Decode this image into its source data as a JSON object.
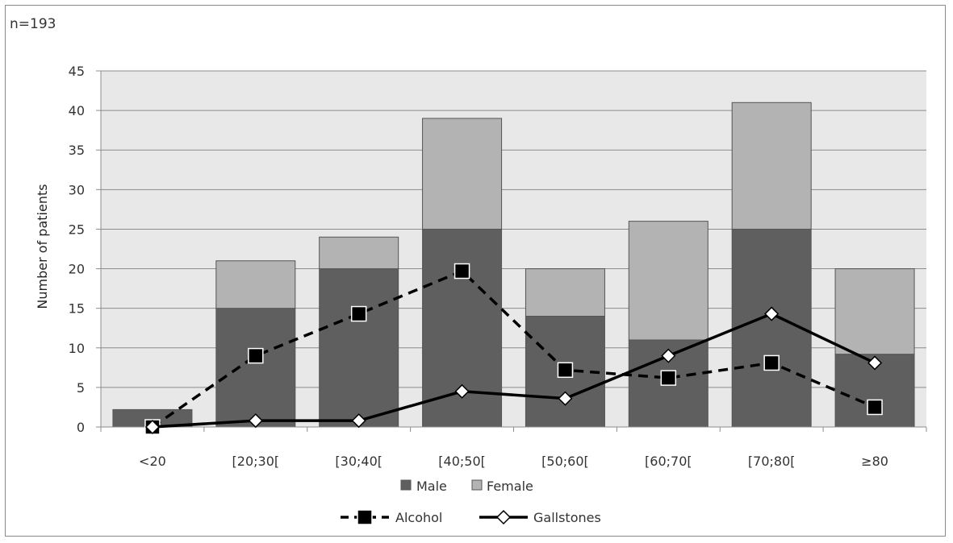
{
  "annotation": "n=193",
  "chart_data": {
    "type": "bar",
    "stacked": true,
    "categories": [
      "<20",
      "[20;30[",
      "[30;40[",
      "[40;50[",
      "[50;60[",
      "[60;70[",
      "[70;80[",
      "≥80"
    ],
    "ylabel": "Number of patients",
    "ylim": [
      0,
      45
    ],
    "yticks": [
      0,
      5,
      10,
      15,
      20,
      25,
      30,
      35,
      40,
      45
    ],
    "grid": true,
    "bar_series": [
      {
        "name": "Male",
        "color": "#5f5f5f",
        "values": [
          2.2,
          15,
          20,
          25,
          14,
          11,
          25,
          9.2
        ]
      },
      {
        "name": "Female",
        "color": "#b3b3b3",
        "values": [
          0,
          6,
          4,
          14,
          6,
          15,
          16,
          10.8
        ]
      }
    ],
    "line_series": [
      {
        "name": "Alcohol",
        "style": "dashed",
        "marker": "square",
        "color": "#000000",
        "values": [
          0,
          9,
          14.3,
          19.7,
          7.2,
          6.2,
          8.1,
          2.5
        ]
      },
      {
        "name": "Gallstones",
        "style": "solid",
        "marker": "diamond",
        "color": "#000000",
        "values": [
          0,
          0.8,
          0.8,
          4.5,
          3.6,
          9,
          14.3,
          8.1
        ]
      }
    ],
    "plot_background": "#e8e8e8"
  }
}
